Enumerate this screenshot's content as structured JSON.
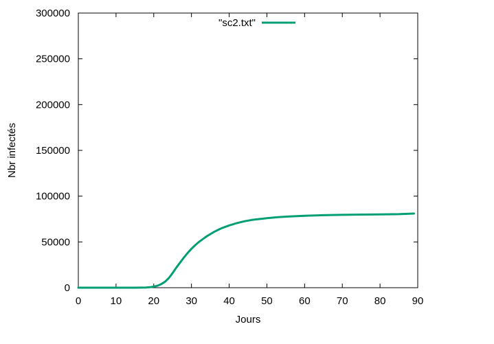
{
  "chart_data": {
    "type": "line",
    "title": "",
    "xlabel": "Jours",
    "ylabel": "Nbr infectés",
    "xlim": [
      0,
      90
    ],
    "ylim": [
      0,
      300000
    ],
    "x_ticks": [
      "0",
      "10",
      "20",
      "30",
      "40",
      "50",
      "60",
      "70",
      "80",
      "90"
    ],
    "y_ticks": [
      "0",
      "50000",
      "100000",
      "150000",
      "200000",
      "250000",
      "300000"
    ],
    "grid": false,
    "legend_position": "top-center",
    "series": [
      {
        "name": "\"sc2.txt\"",
        "color": "#009e73",
        "x": [
          0,
          5,
          10,
          15,
          18,
          19,
          20,
          21,
          22,
          23,
          24,
          25,
          26,
          27,
          28,
          29,
          30,
          31,
          32,
          33,
          34,
          35,
          36,
          37,
          38,
          39,
          40,
          42,
          44,
          46,
          48,
          50,
          53,
          56,
          60,
          65,
          70,
          75,
          80,
          85,
          89
        ],
        "y": [
          0,
          0,
          0,
          0,
          200,
          500,
          1200,
          2200,
          4000,
          6500,
          10500,
          16000,
          22000,
          27500,
          33000,
          38000,
          42500,
          46500,
          50000,
          53000,
          56000,
          58500,
          61000,
          63000,
          65000,
          66500,
          68000,
          70500,
          72500,
          74000,
          75000,
          76000,
          77000,
          77800,
          78500,
          79200,
          79600,
          79900,
          80100,
          80300,
          81000
        ]
      }
    ]
  }
}
